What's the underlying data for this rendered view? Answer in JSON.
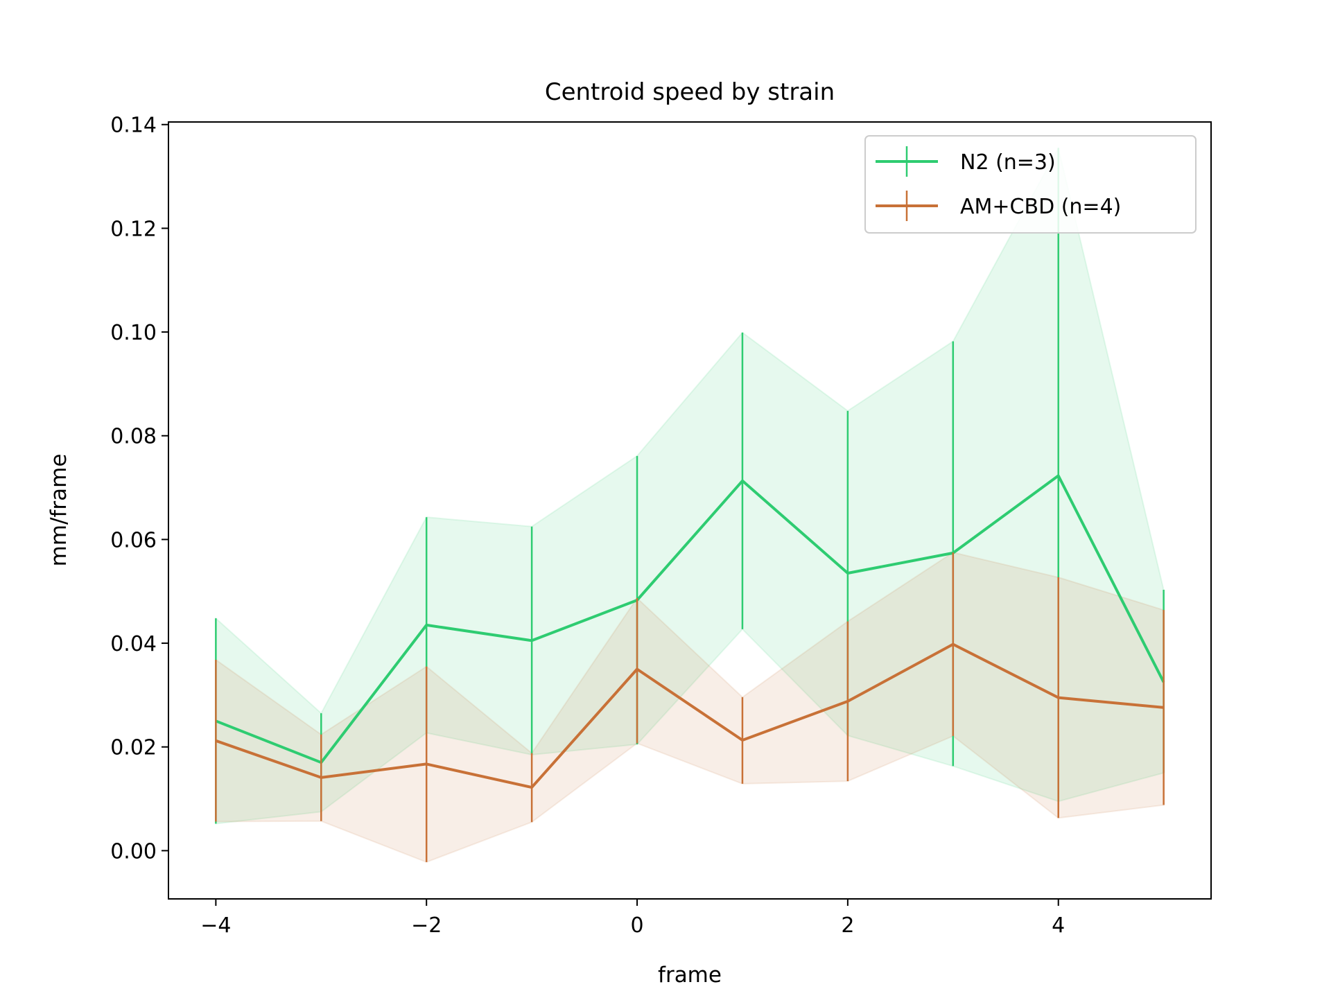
{
  "chart_data": {
    "type": "line",
    "title": "Centroid speed by strain",
    "xlabel": "frame",
    "ylabel": "mm/frame",
    "xlim": [
      -4.45,
      5.45
    ],
    "ylim": [
      -0.0093,
      0.1405
    ],
    "xticks": [
      -4,
      -2,
      0,
      2,
      4
    ],
    "xtick_labels": [
      "−4",
      "−2",
      "0",
      "2",
      "4"
    ],
    "yticks": [
      0.0,
      0.02,
      0.04,
      0.06,
      0.08,
      0.1,
      0.12,
      0.14
    ],
    "ytick_labels": [
      "0.00",
      "0.02",
      "0.04",
      "0.06",
      "0.08",
      "0.10",
      "0.12",
      "0.14"
    ],
    "grid": false,
    "legend_position": "top-right",
    "x": [
      -4,
      -3,
      -2,
      -1,
      0,
      1,
      2,
      3,
      4,
      5
    ],
    "series": [
      {
        "name": "N2 (n=3)",
        "color": "#2ecc71",
        "values": [
          0.025,
          0.017,
          0.0435,
          0.0405,
          0.0483,
          0.0713,
          0.0535,
          0.0574,
          0.0723,
          0.0325
        ],
        "err_low": [
          0.0052,
          0.0075,
          0.0227,
          0.0185,
          0.0205,
          0.0427,
          0.0222,
          0.0163,
          0.0095,
          0.015
        ],
        "err_high": [
          0.0448,
          0.0265,
          0.0643,
          0.0625,
          0.0761,
          0.0999,
          0.0848,
          0.0982,
          0.1355,
          0.0503
        ]
      },
      {
        "name": "AM+CBD (n=4)",
        "color": "#c87137",
        "values": [
          0.0212,
          0.0141,
          0.0167,
          0.0122,
          0.035,
          0.0213,
          0.0288,
          0.0398,
          0.0295,
          0.0276
        ],
        "err_low": [
          0.0056,
          0.0057,
          -0.0022,
          0.0055,
          0.0207,
          0.0129,
          0.0134,
          0.0221,
          0.0063,
          0.0088
        ],
        "err_high": [
          0.0368,
          0.0224,
          0.0355,
          0.0188,
          0.0487,
          0.0296,
          0.0442,
          0.0575,
          0.0527,
          0.0464
        ]
      }
    ]
  }
}
